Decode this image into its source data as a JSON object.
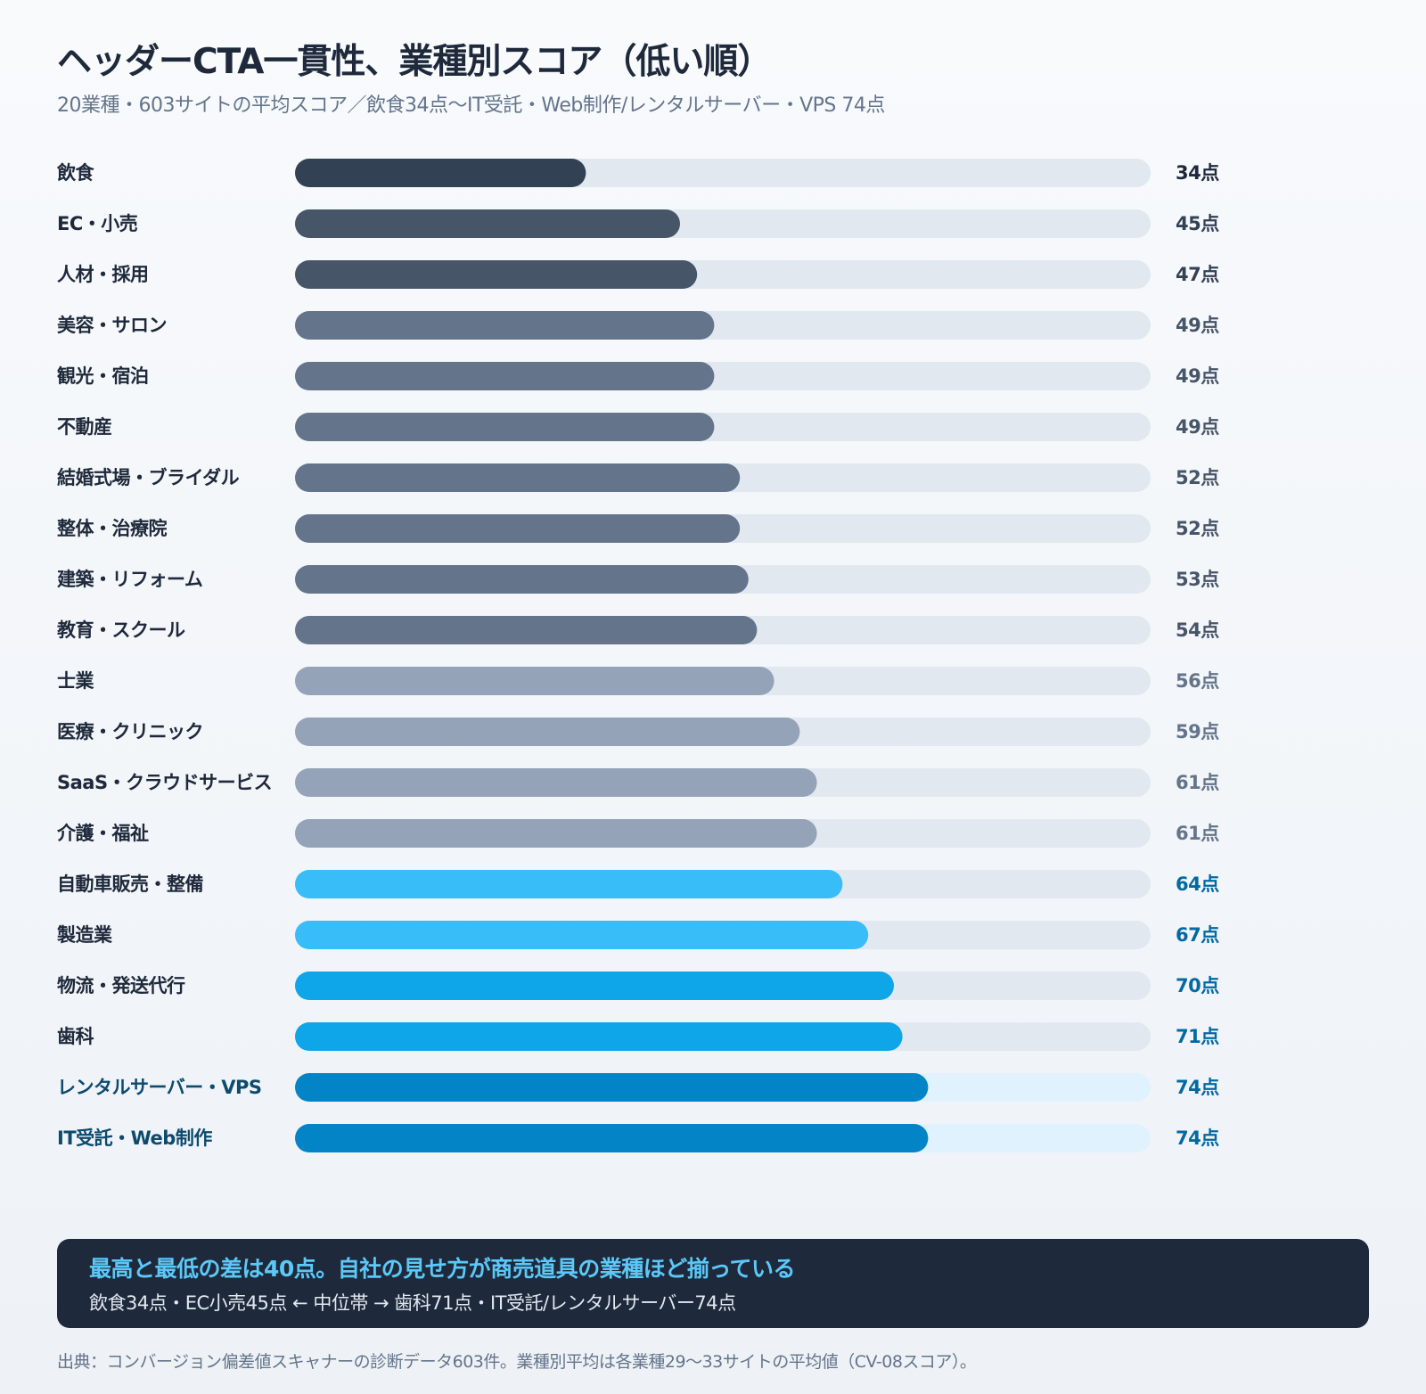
{
  "header": {
    "title": "ヘッダーCTA一貫性、業種別スコア（低い順）",
    "subtitle": "20業種・603サイトの平均スコア／飲食34点〜IT受託・Web制作/レンタルサーバー・VPS 74点"
  },
  "chart_data": {
    "type": "bar",
    "orientation": "horizontal",
    "title": "ヘッダーCTA一貫性、業種別スコア（低い順）",
    "value_suffix": "点",
    "xlim": [
      0,
      100
    ],
    "track_color": "#e2e8f0",
    "highlight_track_color": "#e0f2fe",
    "categories": [
      "飲食",
      "EC・小売",
      "人材・採用",
      "美容・サロン",
      "観光・宿泊",
      "不動産",
      "結婚式場・ブライダル",
      "整体・治療院",
      "建築・リフォーム",
      "教育・スクール",
      "士業",
      "医療・クリニック",
      "SaaS・クラウドサービス",
      "介護・福祉",
      "自動車販売・整備",
      "製造業",
      "物流・発送代行",
      "歯科",
      "レンタルサーバー・VPS",
      "IT受託・Web制作"
    ],
    "values": [
      34,
      45,
      47,
      49,
      49,
      49,
      52,
      52,
      53,
      54,
      56,
      59,
      61,
      61,
      64,
      67,
      70,
      71,
      74,
      74
    ],
    "bar_colors": [
      "#334155",
      "#475569",
      "#475569",
      "#64748b",
      "#64748b",
      "#64748b",
      "#64748b",
      "#64748b",
      "#64748b",
      "#64748b",
      "#94a3b8",
      "#94a3b8",
      "#94a3b8",
      "#94a3b8",
      "#38bdf8",
      "#38bdf8",
      "#0ea5e9",
      "#0ea5e9",
      "#0284c7",
      "#0284c7"
    ],
    "label_colors": [
      "#1e293b",
      "#1e293b",
      "#1e293b",
      "#1e293b",
      "#1e293b",
      "#1e293b",
      "#1e293b",
      "#1e293b",
      "#1e293b",
      "#1e293b",
      "#1e293b",
      "#1e293b",
      "#1e293b",
      "#1e293b",
      "#1e293b",
      "#1e293b",
      "#1e293b",
      "#1e293b",
      "#0c4a6e",
      "#0c4a6e"
    ],
    "value_label_colors": [
      "#1e293b",
      "#334155",
      "#334155",
      "#475569",
      "#475569",
      "#475569",
      "#475569",
      "#475569",
      "#475569",
      "#475569",
      "#64748b",
      "#64748b",
      "#64748b",
      "#64748b",
      "#0369a1",
      "#0369a1",
      "#0369a1",
      "#0369a1",
      "#0369a1",
      "#0369a1"
    ],
    "highlighted": [
      false,
      false,
      false,
      false,
      false,
      false,
      false,
      false,
      false,
      false,
      false,
      false,
      false,
      false,
      false,
      false,
      false,
      false,
      true,
      true
    ]
  },
  "callout": {
    "title": "最高と最低の差は40点。自社の見せ方が商売道具の業種ほど揃っている",
    "body": "飲食34点・EC小売45点 ← 中位帯 → 歯科71点・IT受託/レンタルサーバー74点"
  },
  "footnote": "出典：コンバージョン偏差値スキャナーの診断データ603件。業種別平均は各業種29〜33サイトの平均値（CV-08スコア）。"
}
